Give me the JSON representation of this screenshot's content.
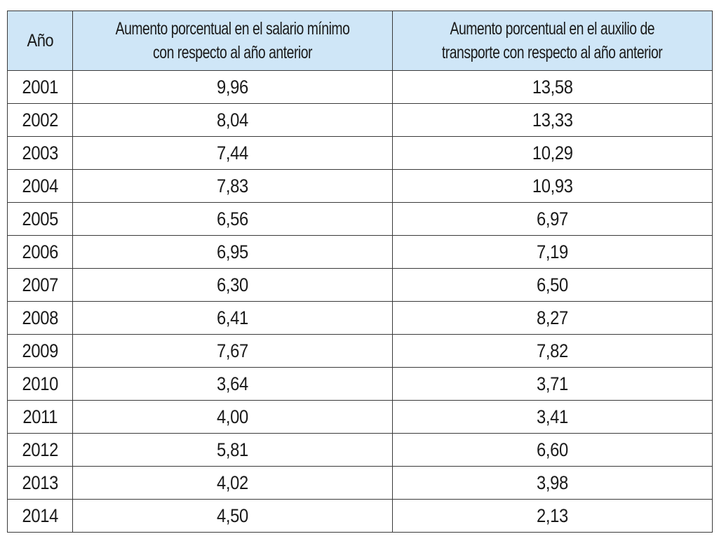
{
  "table": {
    "headers": {
      "year": "Año",
      "salary_line1": "Aumento porcentual en el salario mínimo",
      "salary_line2": "con respecto al año anterior",
      "transport_line1": "Aumento porcentual en el auxilio de",
      "transport_line2": "transporte con respecto al año anterior"
    },
    "rows": [
      {
        "year": "2001",
        "salary": "9,96",
        "transport": "13,58"
      },
      {
        "year": "2002",
        "salary": "8,04",
        "transport": "13,33"
      },
      {
        "year": "2003",
        "salary": "7,44",
        "transport": "10,29"
      },
      {
        "year": "2004",
        "salary": "7,83",
        "transport": "10,93"
      },
      {
        "year": "2005",
        "salary": "6,56",
        "transport": "6,97"
      },
      {
        "year": "2006",
        "salary": "6,95",
        "transport": "7,19"
      },
      {
        "year": "2007",
        "salary": "6,30",
        "transport": "6,50"
      },
      {
        "year": "2008",
        "salary": "6,41",
        "transport": "8,27"
      },
      {
        "year": "2009",
        "salary": "7,67",
        "transport": "7,82"
      },
      {
        "year": "2010",
        "salary": "3,64",
        "transport": "3,71"
      },
      {
        "year": "2011",
        "salary": "4,00",
        "transport": "3,41"
      },
      {
        "year": "2012",
        "salary": "5,81",
        "transport": "6,60"
      },
      {
        "year": "2013",
        "salary": "4,02",
        "transport": "3,98"
      },
      {
        "year": "2014",
        "salary": "4,50",
        "transport": "2,13"
      }
    ],
    "colors": {
      "header_background": "#cfe6f7",
      "border": "#3a3a3a"
    }
  }
}
